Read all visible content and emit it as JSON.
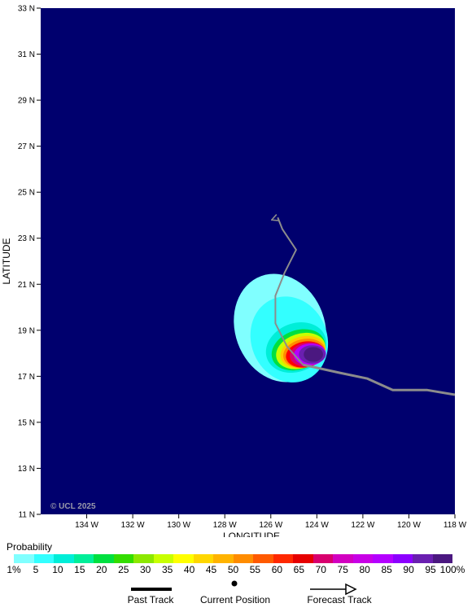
{
  "map": {
    "bounds": {
      "lon_min": -136,
      "lon_max": -118,
      "lat_min": 11,
      "lat_max": 33
    },
    "ocean_color": "#00006e",
    "track_color": "#8c8c8c",
    "axis": {
      "ylabel": "LATITUDE",
      "xlabel": "LONGITUDE",
      "lat_ticks": [
        {
          "value": 33,
          "label": "33 N"
        },
        {
          "value": 31,
          "label": "31 N"
        },
        {
          "value": 29,
          "label": "29 N"
        },
        {
          "value": 27,
          "label": "27 N"
        },
        {
          "value": 25,
          "label": "25 N"
        },
        {
          "value": 23,
          "label": "23 N"
        },
        {
          "value": 21,
          "label": "21 N"
        },
        {
          "value": 19,
          "label": "19 N"
        },
        {
          "value": 17,
          "label": "17 N"
        },
        {
          "value": 15,
          "label": "15 N"
        },
        {
          "value": 13,
          "label": "13 N"
        },
        {
          "value": 11,
          "label": "11 N"
        }
      ],
      "lon_ticks": [
        {
          "value": -134,
          "label": "134 W"
        },
        {
          "value": -132,
          "label": "132 W"
        },
        {
          "value": -130,
          "label": "130 W"
        },
        {
          "value": -128,
          "label": "128 W"
        },
        {
          "value": -126,
          "label": "126 W"
        },
        {
          "value": -124,
          "label": "124 W"
        },
        {
          "value": -122,
          "label": "122 W"
        },
        {
          "value": -120,
          "label": "120 W"
        },
        {
          "value": -118,
          "label": "118 W"
        }
      ]
    },
    "copyright": "© UCL 2025",
    "past_track": [
      {
        "lon": -118,
        "lat": 16.2
      },
      {
        "lon": -119.2,
        "lat": 16.4
      },
      {
        "lon": -120.7,
        "lat": 16.4
      },
      {
        "lon": -121.8,
        "lat": 16.9
      },
      {
        "lon": -123.0,
        "lat": 17.15
      },
      {
        "lon": -124.6,
        "lat": 17.5
      }
    ],
    "current_position": {
      "lon": -124.6,
      "lat": 17.5
    },
    "forecast_track": [
      {
        "lon": -124.6,
        "lat": 17.5
      },
      {
        "lon": -125.3,
        "lat": 18.3
      },
      {
        "lon": -125.8,
        "lat": 19.3
      },
      {
        "lon": -125.8,
        "lat": 20.5
      },
      {
        "lon": -125.4,
        "lat": 21.5
      },
      {
        "lon": -124.9,
        "lat": 22.5
      },
      {
        "lon": -125.5,
        "lat": 23.4
      },
      {
        "lon": -125.7,
        "lat": 23.9
      }
    ],
    "probability_regions": [
      {
        "pct": 1,
        "color": "#80ffff",
        "center": {
          "lon": -125.6,
          "lat": 19.1
        },
        "r_lon": 1.95,
        "r_lat": 2.4,
        "rot": -20
      },
      {
        "pct": 5,
        "color": "#33ffff",
        "center": {
          "lon": -125.2,
          "lat": 18.6
        },
        "r_lon": 1.65,
        "r_lat": 1.9,
        "rot": -22
      },
      {
        "pct": 10,
        "color": "#00eed8",
        "center": {
          "lon": -124.9,
          "lat": 18.25
        },
        "r_lon": 1.35,
        "r_lat": 1.05,
        "rot": -22
      },
      {
        "pct": 20,
        "color": "#00e040",
        "center": {
          "lon": -124.8,
          "lat": 18.15
        },
        "r_lon": 1.2,
        "r_lat": 0.85,
        "rot": -20
      },
      {
        "pct": 30,
        "color": "#c8ff00",
        "center": {
          "lon": -124.7,
          "lat": 18.1
        },
        "r_lon": 1.1,
        "r_lat": 0.75,
        "rot": -18
      },
      {
        "pct": 40,
        "color": "#ffcc00",
        "center": {
          "lon": -124.6,
          "lat": 18.05
        },
        "r_lon": 1.0,
        "r_lat": 0.68,
        "rot": -15
      },
      {
        "pct": 50,
        "color": "#ff8c00",
        "center": {
          "lon": -124.55,
          "lat": 18.0
        },
        "r_lon": 0.92,
        "r_lat": 0.62,
        "rot": -12
      },
      {
        "pct": 60,
        "color": "#ff0000",
        "center": {
          "lon": -124.5,
          "lat": 17.95
        },
        "r_lon": 0.85,
        "r_lat": 0.56,
        "rot": -10
      },
      {
        "pct": 70,
        "color": "#d8006e",
        "center": {
          "lon": -124.4,
          "lat": 17.95
        },
        "r_lon": 0.78,
        "r_lat": 0.52,
        "rot": -8
      },
      {
        "pct": 80,
        "color": "#b400ff",
        "center": {
          "lon": -124.3,
          "lat": 17.95
        },
        "r_lon": 0.7,
        "r_lat": 0.47,
        "rot": -5
      },
      {
        "pct": 90,
        "color": "#6a1fb0",
        "center": {
          "lon": -124.2,
          "lat": 17.95
        },
        "r_lon": 0.58,
        "r_lat": 0.4,
        "rot": 0
      },
      {
        "pct": 95,
        "color": "#4b1880",
        "center": {
          "lon": -124.15,
          "lat": 17.95
        },
        "r_lon": 0.42,
        "r_lat": 0.32,
        "rot": 0
      }
    ]
  },
  "legend": {
    "title": "Probability",
    "colors": [
      "#80ffff",
      "#33ffff",
      "#00eed8",
      "#00ee99",
      "#00e040",
      "#33dd00",
      "#8ce800",
      "#c8ff00",
      "#ffff00",
      "#ffd700",
      "#ffb300",
      "#ff8c00",
      "#ff5a00",
      "#ff2800",
      "#e60000",
      "#d8006e",
      "#d200c0",
      "#c800e6",
      "#b400ff",
      "#8c00ff",
      "#6a1fb0",
      "#4b1880"
    ],
    "ticks": [
      "1%",
      "5",
      "10",
      "15",
      "20",
      "25",
      "30",
      "35",
      "40",
      "45",
      "50",
      "55",
      "60",
      "65",
      "70",
      "75",
      "80",
      "85",
      "90",
      "95",
      "100%"
    ],
    "past_track_label": "Past Track",
    "current_position_label": "Current Position",
    "forecast_track_label": "Forecast Track"
  }
}
